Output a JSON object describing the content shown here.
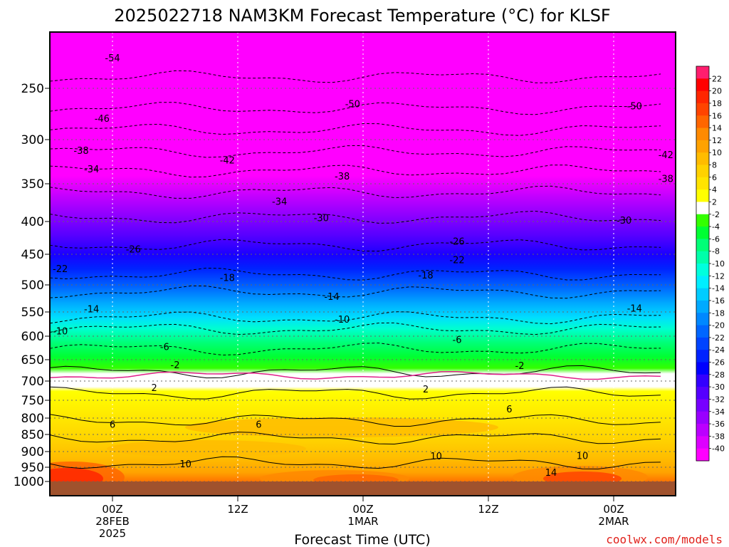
{
  "chart_data": {
    "type": "heatmap",
    "title": "2025022718 NAM3KM Forecast Temperature (°C) for KLSF",
    "xlabel": "Forecast Time (UTC)",
    "ylabel": "",
    "y_ticks": [
      "250",
      "300",
      "350",
      "400",
      "450",
      "500",
      "550",
      "600",
      "650",
      "700",
      "750",
      "800",
      "850",
      "900",
      "950",
      "1000"
    ],
    "x_ticks": [
      {
        "label": "00Z",
        "date": "28FEB",
        "year": "2025"
      },
      {
        "label": "12Z",
        "date": "",
        "year": ""
      },
      {
        "label": "00Z",
        "date": "1MAR",
        "year": ""
      },
      {
        "label": "12Z",
        "date": "",
        "year": ""
      },
      {
        "label": "00Z",
        "date": "2MAR",
        "year": ""
      }
    ],
    "colorbar": {
      "labels": [
        "22",
        "20",
        "18",
        "16",
        "14",
        "12",
        "10",
        "8",
        "6",
        "4",
        "2",
        "-2",
        "-4",
        "-6",
        "-8",
        "-10",
        "-12",
        "-14",
        "-16",
        "-18",
        "-20",
        "-22",
        "-24",
        "-26",
        "-28",
        "-30",
        "-32",
        "-34",
        "-36",
        "-38",
        "-40"
      ],
      "colors": [
        "#ff1e6e",
        "#ff0000",
        "#ff2600",
        "#ff4400",
        "#ff6600",
        "#ff8a00",
        "#ffa200",
        "#ffbc00",
        "#ffd200",
        "#ffe400",
        "#ffff00",
        "#ffffff",
        "#33ff00",
        "#00ff33",
        "#00ff77",
        "#00ffaa",
        "#00ffdd",
        "#00eeff",
        "#00ccff",
        "#00aaff",
        "#0088ff",
        "#0066ff",
        "#0044ff",
        "#0022ff",
        "#0000ff",
        "#3300ff",
        "#5500ff",
        "#7700ff",
        "#9900ff",
        "#bb00ff",
        "#dd00ff",
        "#ff00ff"
      ]
    },
    "temperature_profile": {
      "pressure_hpa": [
        250,
        300,
        350,
        400,
        450,
        500,
        550,
        600,
        650,
        700,
        750,
        800,
        850,
        900,
        950,
        1000
      ],
      "approx_temp_c": [
        -50,
        -42,
        -36,
        -30,
        -25,
        -19,
        -14,
        -10,
        -6,
        0,
        3,
        6,
        7,
        10,
        13,
        14
      ]
    },
    "contour_labels": [
      {
        "text": "-54",
        "time_h": 0,
        "p": 220
      },
      {
        "text": "-50",
        "time_h": 23,
        "p": 265
      },
      {
        "text": "-50",
        "time_h": 50,
        "p": 267
      },
      {
        "text": "-46",
        "time_h": -1,
        "p": 279
      },
      {
        "text": "-42",
        "time_h": 11,
        "p": 323
      },
      {
        "text": "-42",
        "time_h": 53,
        "p": 317
      },
      {
        "text": "-38",
        "time_h": -3,
        "p": 312
      },
      {
        "text": "-38",
        "time_h": 22,
        "p": 341
      },
      {
        "text": "-38",
        "time_h": 53,
        "p": 344
      },
      {
        "text": "-34",
        "time_h": -2,
        "p": 333
      },
      {
        "text": "-34",
        "time_h": 16,
        "p": 373
      },
      {
        "text": "-34",
        "time_h": 60,
        "p": 376
      },
      {
        "text": "-30",
        "time_h": 20,
        "p": 395
      },
      {
        "text": "-30",
        "time_h": 49,
        "p": 398
      },
      {
        "text": "-26",
        "time_h": 2,
        "p": 442
      },
      {
        "text": "-26",
        "time_h": 33,
        "p": 430
      },
      {
        "text": "-26",
        "time_h": 65,
        "p": 436
      },
      {
        "text": "-22",
        "time_h": -5,
        "p": 473
      },
      {
        "text": "-22",
        "time_h": 33,
        "p": 459
      },
      {
        "text": "-22",
        "time_h": 58,
        "p": 464
      },
      {
        "text": "-18",
        "time_h": 11,
        "p": 488
      },
      {
        "text": "-18",
        "time_h": 30,
        "p": 484
      },
      {
        "text": "-18",
        "time_h": 59,
        "p": 500
      },
      {
        "text": "-14",
        "time_h": -2,
        "p": 544
      },
      {
        "text": "-14",
        "time_h": 21,
        "p": 521
      },
      {
        "text": "-14",
        "time_h": 50,
        "p": 543
      },
      {
        "text": "-10",
        "time_h": -5,
        "p": 589
      },
      {
        "text": "-10",
        "time_h": 22,
        "p": 565
      },
      {
        "text": "-10",
        "time_h": 55,
        "p": 587
      },
      {
        "text": "-6",
        "time_h": 5,
        "p": 622
      },
      {
        "text": "-6",
        "time_h": 33,
        "p": 607
      },
      {
        "text": "-6",
        "time_h": 63,
        "p": 640
      },
      {
        "text": "-2",
        "time_h": 6,
        "p": 662
      },
      {
        "text": "-2",
        "time_h": 39,
        "p": 663
      },
      {
        "text": "-2",
        "time_h": 57,
        "p": 671
      },
      {
        "text": "2",
        "time_h": 4,
        "p": 717
      },
      {
        "text": "2",
        "time_h": 30,
        "p": 720
      },
      {
        "text": "2",
        "time_h": 56,
        "p": 718
      },
      {
        "text": "6",
        "time_h": 0,
        "p": 818
      },
      {
        "text": "6",
        "time_h": 14,
        "p": 818
      },
      {
        "text": "6",
        "time_h": 38,
        "p": 774
      },
      {
        "text": "6",
        "time_h": 60,
        "p": 818
      },
      {
        "text": "10",
        "time_h": 7,
        "p": 939
      },
      {
        "text": "10",
        "time_h": 31,
        "p": 914
      },
      {
        "text": "10",
        "time_h": 45,
        "p": 912
      },
      {
        "text": "14",
        "time_h": 42,
        "p": 968
      }
    ]
  },
  "credit": "coolwx.com/models",
  "colors": {
    "surface": "#a0522d",
    "freezing_line": "#e0208a",
    "background": "#ffffff"
  }
}
